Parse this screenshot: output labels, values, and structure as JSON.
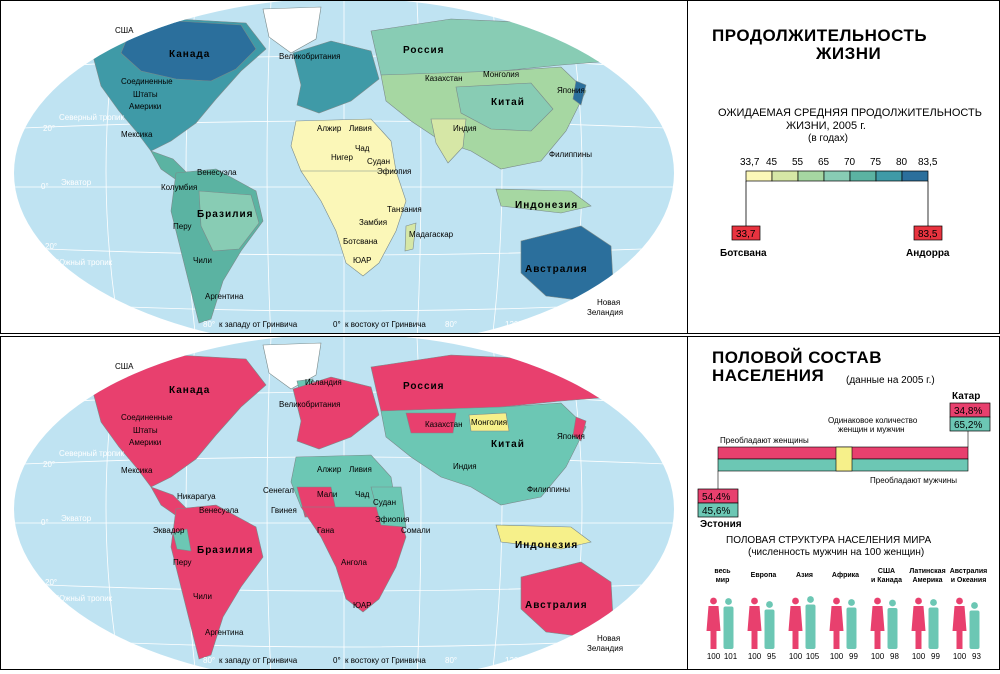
{
  "life_expectancy": {
    "title_line1": "ПРОДОЛЖИТЕЛЬНОСТЬ",
    "title_line2": "ЖИЗНИ",
    "subtitle_line1": "ОЖИДАЕМАЯ СРЕДНЯЯ ПРОДОЛЖИТЕЛЬНОСТЬ",
    "subtitle_line2": "ЖИЗНИ, 2005 г.",
    "subtitle_line3": "(в годах)",
    "scale_ticks": [
      "33,7",
      "45",
      "55",
      "65",
      "70",
      "75",
      "80",
      "83,5"
    ],
    "scale_colors": [
      "#fbf7b8",
      "#d6e7a6",
      "#a6d7a2",
      "#88ccb4",
      "#5bb3a2",
      "#3f9aa7",
      "#2b6f9c"
    ],
    "min": {
      "value": "33,7",
      "country": "Ботсвана"
    },
    "max": {
      "value": "83,5",
      "country": "Андорра"
    },
    "marker_color": "#e8333f"
  },
  "sex_ratio": {
    "title_line1": "ПОЛОВОЙ СОСТАВ",
    "title_line2": "НАСЕЛЕНИЯ",
    "title_note": "(данные на 2005 г.)",
    "women_dominate": "Преобладают женщины",
    "equal_label_line1": "Одинаковое количество",
    "equal_label_line2": "женщин и мужчин",
    "men_dominate": "Преобладают мужчины",
    "women_color": "#e8406e",
    "men_color": "#6cc7b4",
    "equal_color": "#f6f08a",
    "estonia": {
      "country": "Эстония",
      "women": "54,4%",
      "men": "45,6%"
    },
    "qatar": {
      "country": "Катар",
      "women": "34,8%",
      "men": "65,2%"
    },
    "world_title_line1": "ПОЛОВАЯ СТРУКТУРА НАСЕЛЕНИЯ МИРА",
    "world_title_line2": "(численность мужчин на 100 женщин)",
    "groups": [
      {
        "label_lines": [
          "весь",
          "мир"
        ],
        "women": "100",
        "men": "101"
      },
      {
        "label_lines": [
          "Европа"
        ],
        "women": "100",
        "men": "95"
      },
      {
        "label_lines": [
          "Азия"
        ],
        "women": "100",
        "men": "105"
      },
      {
        "label_lines": [
          "Африка"
        ],
        "women": "100",
        "men": "99"
      },
      {
        "label_lines": [
          "США",
          "и Канада"
        ],
        "women": "100",
        "men": "98"
      },
      {
        "label_lines": [
          "Латинская",
          "Америка"
        ],
        "women": "100",
        "men": "99"
      },
      {
        "label_lines": [
          "Австралия",
          "и Океания"
        ],
        "women": "100",
        "men": "93"
      }
    ]
  },
  "map_labels": {
    "top": [
      "США",
      "Канада",
      "Соединенные",
      "Штаты",
      "Америки",
      "Мексика",
      "Венесуэла",
      "Колумбия",
      "Бразилия",
      "Перу",
      "Чили",
      "Аргентина",
      "Великобритания",
      "Россия",
      "Казахстан",
      "Монголия",
      "Китай",
      "Япония",
      "Алжир",
      "Ливия",
      "Чад",
      "Нигер",
      "Судан",
      "Эфиопия",
      "Индия",
      "Филиппины",
      "Индонезия",
      "Танзания",
      "Замбия",
      "Мадагаскар",
      "Ботсвана",
      "ЮАР",
      "Австралия",
      "Новая",
      "Зеландия"
    ],
    "bottom": [
      "США",
      "Канада",
      "Соединенные",
      "Штаты",
      "Америки",
      "Мексика",
      "Никарагуа",
      "Венесуэла",
      "Эквадор",
      "Перу",
      "Бразилия",
      "Чили",
      "Аргентина",
      "Исландия",
      "Великобритания",
      "Россия",
      "Казахстан",
      "Монголия",
      "Китай",
      "Япония",
      "Алжир",
      "Ливия",
      "Мали",
      "Сенегал",
      "Гвинея",
      "Гана",
      "Чад",
      "Судан",
      "Эфиопия",
      "Сомали",
      "Ангола",
      "ЮАР",
      "Индия",
      "Филиппины",
      "Индонезия",
      "Австралия",
      "Новая",
      "Зеландия"
    ],
    "tropic_north": "Северный тропик",
    "equator": "Экватор",
    "tropic_south": "Южный тропик",
    "lon_west": "к западу от Гринвича",
    "lon_east": "к востоку от Гринвича",
    "lat_marks": [
      "40°",
      "20°",
      "0°",
      "20°",
      "40°"
    ],
    "lon_marks": [
      "160°",
      "120°",
      "80°",
      "40°",
      "0°",
      "40°",
      "80°",
      "120°"
    ]
  }
}
